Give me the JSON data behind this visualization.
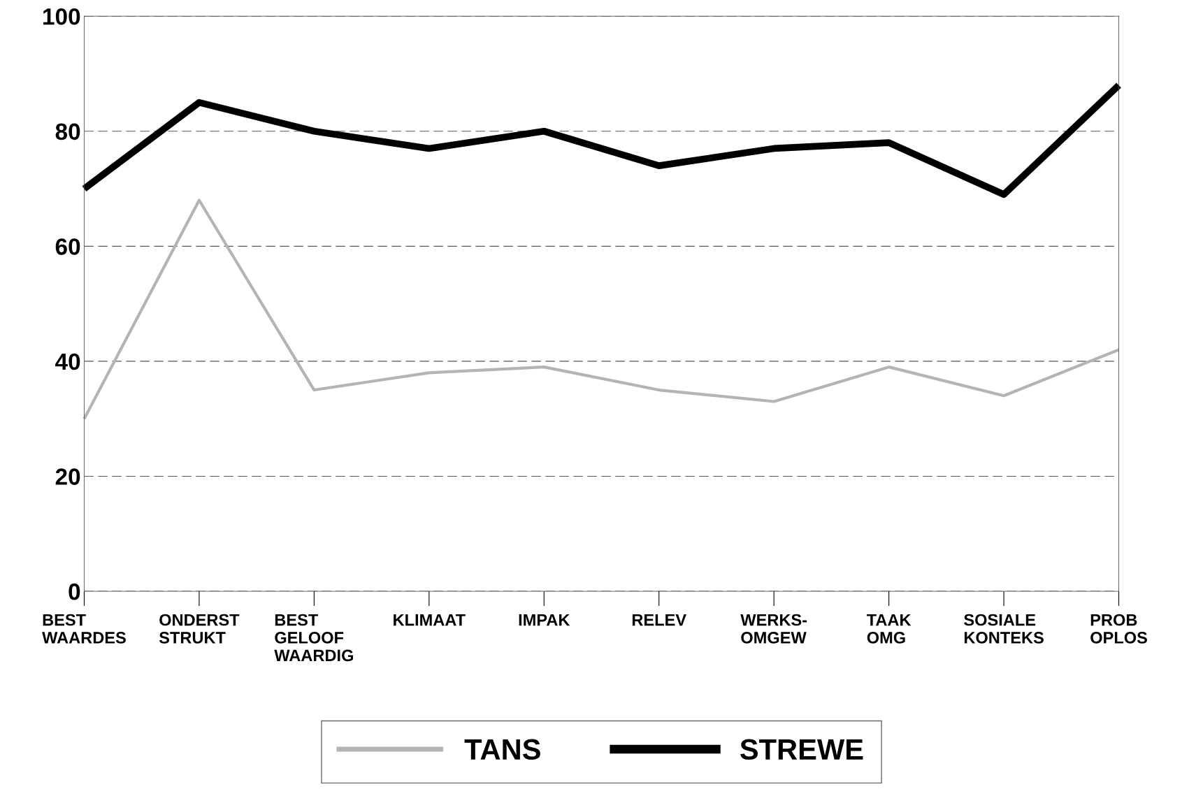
{
  "chart_data": {
    "type": "line",
    "categories": [
      "BEST\nWAARDES",
      "ONDERST\nSTRUKT",
      "BEST\nGELOOF\nWAARDIG",
      "KLIMAAT",
      "IMPAK",
      "RELEV",
      "WERKS-\nOMGEW",
      "TAAK\nOMG",
      "SOSIALE\nKONTEKS",
      "PROB\nOPLOS"
    ],
    "series": [
      {
        "name": "TANS",
        "color": "#b4b4b4",
        "values": [
          30,
          68,
          35,
          38,
          39,
          35,
          33,
          39,
          34,
          42
        ]
      },
      {
        "name": "STREWE",
        "color": "#000000",
        "values": [
          70,
          85,
          80,
          77,
          80,
          74,
          77,
          78,
          69,
          88
        ]
      }
    ],
    "ylim": [
      0,
      100
    ],
    "yticks": [
      0,
      20,
      40,
      60,
      80,
      100
    ],
    "grid": "y",
    "legend": "bottom",
    "marker": "none",
    "line_style": "solid"
  }
}
